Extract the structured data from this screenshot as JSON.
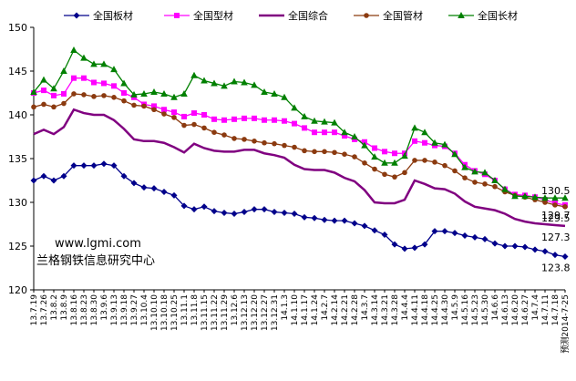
{
  "chart_data": {
    "type": "line",
    "title": "",
    "xlabel": "",
    "ylabel": "",
    "ylim": [
      120,
      150
    ],
    "yticks": [
      120,
      125,
      130,
      135,
      140,
      145,
      150
    ],
    "legend_position": "top",
    "grid": false,
    "watermark": {
      "site": "www.lgmi.com",
      "org": "兰格钢铁信息研究中心"
    },
    "x_tick_labels": [
      "13.7.19",
      "13.7.26",
      "13.8.2",
      "13.8.9",
      "13.8.16",
      "13.8.23",
      "13.8.30",
      "13.9.6",
      "13.9.13",
      "13.9.18",
      "13.9.27",
      "13.10.4",
      "13.10.10",
      "13.10.18",
      "13.10.25",
      "13.11.1",
      "13.11.8",
      "13.11.15",
      "13.11.22",
      "13.11.29",
      "13.12.6",
      "13.12.13",
      "13.12.20",
      "13.12.27",
      "13.12.31",
      "14.1.3",
      "14.1.10",
      "14.1.17",
      "14.1.24",
      "14.2.7",
      "14.2.14",
      "14.2.21",
      "14.2.28",
      "14.3.7",
      "14.3.14",
      "14.3.21",
      "14.3.28",
      "14.4.4",
      "14.4.11",
      "14.4.18",
      "14.4.25",
      "14.4.30",
      "14.5.9",
      "14.5.16",
      "14.5.23",
      "14.5.30",
      "14.6.6",
      "14.6.13",
      "14.6.20",
      "14.6.27",
      "14.7.4",
      "14.7.11",
      "14.7.18",
      "预测2014-7-25"
    ],
    "series": [
      {
        "name": "全国板材",
        "color": "#00008b",
        "marker": "diamond",
        "end_label": "123.8",
        "values": [
          132.5,
          133.0,
          132.5,
          133.0,
          134.2,
          134.2,
          134.2,
          134.4,
          134.2,
          133.0,
          132.2,
          131.7,
          131.6,
          131.2,
          130.8,
          129.6,
          129.2,
          129.5,
          129.0,
          128.8,
          128.7,
          128.9,
          129.2,
          129.2,
          128.9,
          128.8,
          128.7,
          128.3,
          128.2,
          128.0,
          127.9,
          127.9,
          127.6,
          127.3,
          126.8,
          126.3,
          125.2,
          124.7,
          124.8,
          125.2,
          126.7,
          126.7,
          126.5,
          126.2,
          126.0,
          125.8,
          125.3,
          125.0,
          125.0,
          124.9,
          124.6,
          124.4,
          124.0,
          123.8
        ]
      },
      {
        "name": "全国型材",
        "color": "#ff00ff",
        "marker": "square",
        "end_label": "129.7",
        "values": [
          142.5,
          142.8,
          142.2,
          142.4,
          144.2,
          144.2,
          143.7,
          143.6,
          143.3,
          142.5,
          142.0,
          141.2,
          141.0,
          140.6,
          140.3,
          139.8,
          140.2,
          140.0,
          139.5,
          139.4,
          139.5,
          139.6,
          139.6,
          139.4,
          139.4,
          139.3,
          139.0,
          138.5,
          138.0,
          138.0,
          138.0,
          137.6,
          137.2,
          136.9,
          136.2,
          135.8,
          135.6,
          135.6,
          137.0,
          136.8,
          136.5,
          136.4,
          135.6,
          134.3,
          133.6,
          133.2,
          132.5,
          131.5,
          130.9,
          130.8,
          130.6,
          130.3,
          129.9,
          129.7
        ]
      },
      {
        "name": "全国综合",
        "color": "#800080",
        "marker": "none",
        "end_label": "127.3",
        "values": [
          137.8,
          138.3,
          137.8,
          138.6,
          140.6,
          140.2,
          140.0,
          140.0,
          139.4,
          138.4,
          137.2,
          137.0,
          137.0,
          136.8,
          136.3,
          135.7,
          136.7,
          136.2,
          135.9,
          135.8,
          135.8,
          136.0,
          136.0,
          135.6,
          135.4,
          135.1,
          134.3,
          133.8,
          133.7,
          133.7,
          133.4,
          132.8,
          132.4,
          131.4,
          130.0,
          129.9,
          129.9,
          130.3,
          132.5,
          132.1,
          131.6,
          131.5,
          131.0,
          130.1,
          129.5,
          129.3,
          129.1,
          128.7,
          128.1,
          127.8,
          127.6,
          127.5,
          127.4,
          127.3
        ]
      },
      {
        "name": "全国管材",
        "color": "#8b3a0f",
        "marker": "circle",
        "end_label": "129.5",
        "values": [
          140.9,
          141.2,
          140.9,
          141.3,
          142.4,
          142.3,
          142.1,
          142.2,
          142.0,
          141.6,
          141.1,
          141.0,
          140.6,
          140.1,
          139.7,
          138.8,
          138.9,
          138.5,
          138.0,
          137.7,
          137.3,
          137.2,
          137.0,
          136.8,
          136.7,
          136.5,
          136.3,
          135.9,
          135.8,
          135.8,
          135.7,
          135.5,
          135.2,
          134.5,
          133.8,
          133.2,
          132.9,
          133.4,
          134.8,
          134.8,
          134.6,
          134.2,
          133.6,
          132.8,
          132.3,
          132.1,
          131.8,
          131.2,
          130.8,
          130.6,
          130.3,
          130.0,
          129.7,
          129.5
        ]
      },
      {
        "name": "全国长材",
        "color": "#008000",
        "marker": "triangle",
        "end_label": "130.5",
        "values": [
          142.6,
          144.0,
          143.0,
          145.0,
          147.4,
          146.5,
          145.8,
          145.8,
          145.2,
          143.6,
          142.3,
          142.4,
          142.6,
          142.4,
          142.0,
          142.4,
          144.5,
          143.9,
          143.6,
          143.3,
          143.8,
          143.7,
          143.4,
          142.6,
          142.4,
          142.0,
          140.8,
          139.8,
          139.3,
          139.2,
          139.1,
          138.0,
          137.5,
          136.5,
          135.2,
          134.5,
          134.5,
          135.3,
          138.5,
          138.0,
          136.8,
          136.6,
          135.5,
          134.0,
          133.5,
          133.4,
          132.5,
          131.5,
          130.7,
          130.7,
          130.6,
          130.5,
          130.5,
          130.5
        ]
      }
    ]
  }
}
